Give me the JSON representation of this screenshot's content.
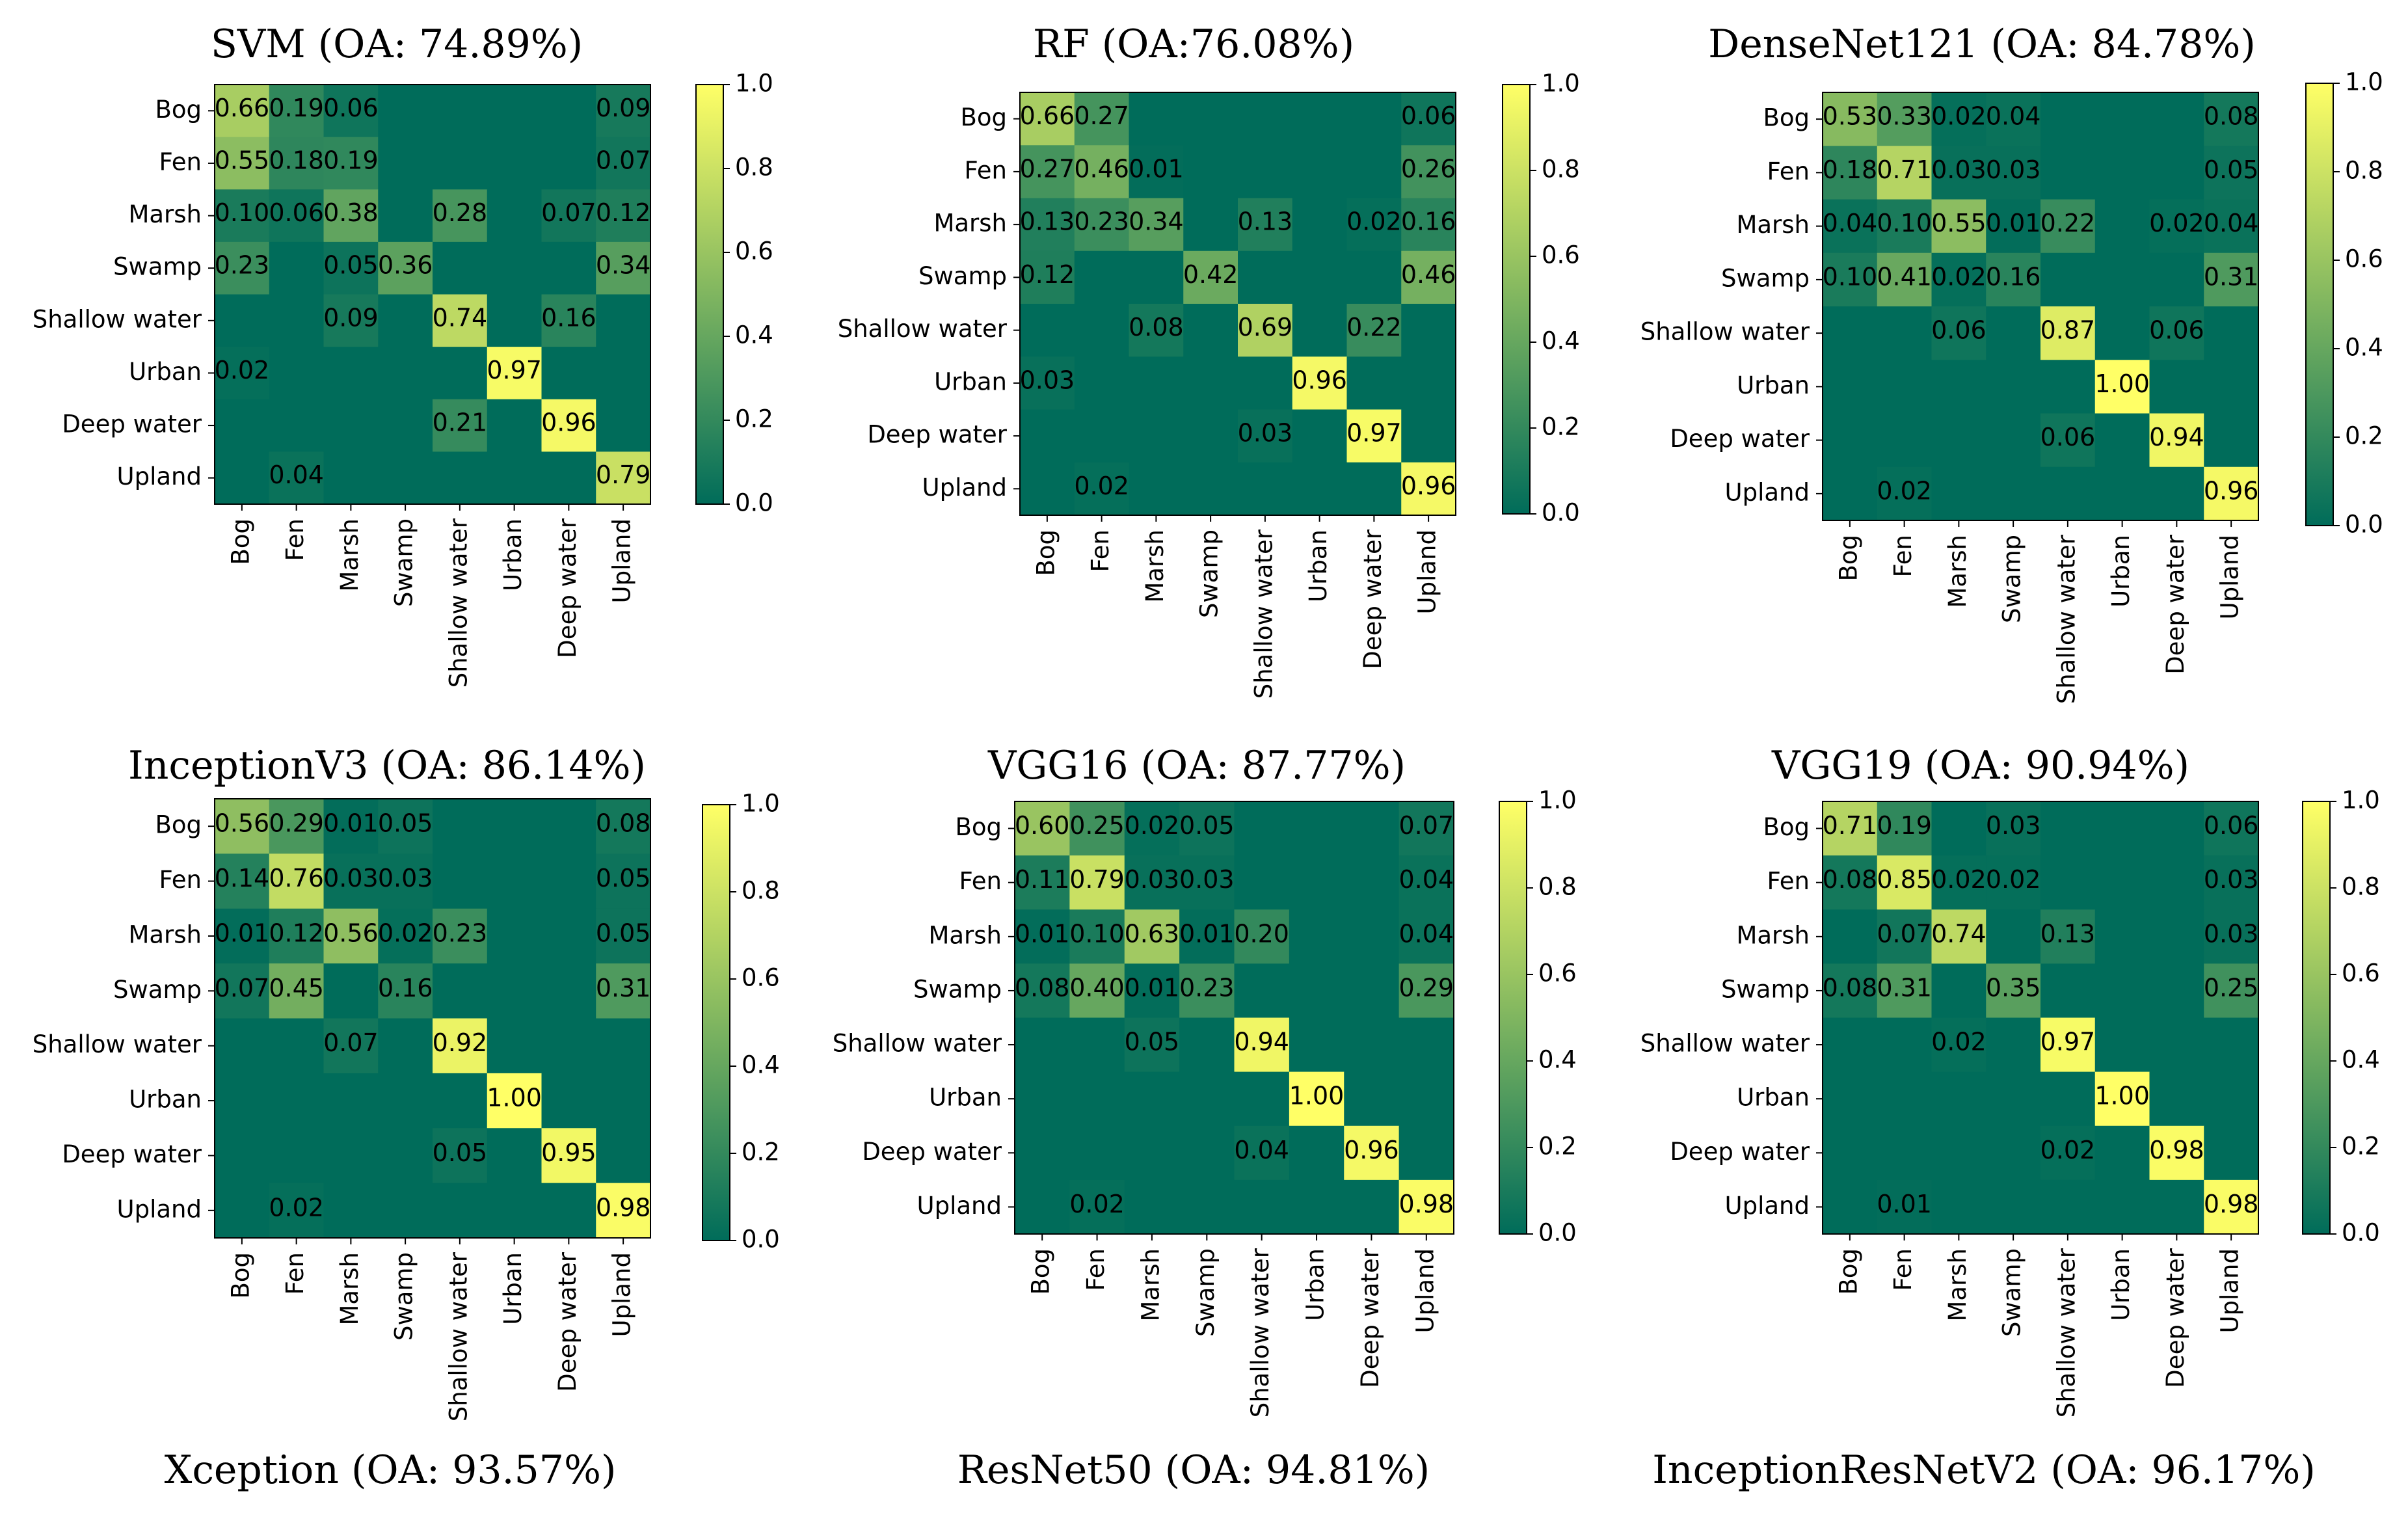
{
  "colors": {
    "low": "#006c5a",
    "high": "#ffff66",
    "text": "#000000"
  },
  "chart_data": [
    {
      "type": "heatmap",
      "title": "SVM (OA: 74.89%)",
      "labels": [
        "Bog",
        "Fen",
        "Marsh",
        "Swamp",
        "Shallow water",
        "Urban",
        "Deep water",
        "Upland"
      ],
      "values": [
        [
          0.66,
          0.19,
          0.06,
          null,
          null,
          null,
          null,
          0.09
        ],
        [
          0.55,
          0.18,
          0.19,
          null,
          null,
          null,
          null,
          0.07
        ],
        [
          0.1,
          0.06,
          0.38,
          null,
          0.28,
          null,
          0.07,
          0.12
        ],
        [
          0.23,
          null,
          0.05,
          0.36,
          null,
          null,
          null,
          0.34
        ],
        [
          null,
          null,
          0.09,
          null,
          0.74,
          null,
          0.16,
          null
        ],
        [
          0.02,
          null,
          null,
          null,
          null,
          0.97,
          null,
          null
        ],
        [
          null,
          null,
          null,
          null,
          0.21,
          null,
          0.96,
          null
        ],
        [
          null,
          0.04,
          null,
          null,
          null,
          null,
          null,
          0.79
        ]
      ],
      "colorbar_ticks": [
        "0.0",
        "0.2",
        "0.4",
        "0.6",
        "0.8",
        "1.0"
      ],
      "vmin": 0,
      "vmax": 1
    },
    {
      "type": "heatmap",
      "title": "RF (OA:76.08%)",
      "labels": [
        "Bog",
        "Fen",
        "Marsh",
        "Swamp",
        "Shallow water",
        "Urban",
        "Deep water",
        "Upland"
      ],
      "values": [
        [
          0.66,
          0.27,
          null,
          null,
          null,
          null,
          null,
          0.06
        ],
        [
          0.27,
          0.46,
          0.01,
          null,
          null,
          null,
          null,
          0.26
        ],
        [
          0.13,
          0.23,
          0.34,
          null,
          0.13,
          null,
          0.02,
          0.16
        ],
        [
          0.12,
          null,
          null,
          0.42,
          null,
          null,
          null,
          0.46
        ],
        [
          null,
          null,
          0.08,
          null,
          0.69,
          null,
          0.22,
          null
        ],
        [
          0.03,
          null,
          null,
          null,
          null,
          0.96,
          null,
          null
        ],
        [
          null,
          null,
          null,
          null,
          0.03,
          null,
          0.97,
          null
        ],
        [
          null,
          0.02,
          null,
          null,
          null,
          null,
          null,
          0.96
        ]
      ],
      "colorbar_ticks": [
        "0.0",
        "0.2",
        "0.4",
        "0.6",
        "0.8",
        "1.0"
      ],
      "vmin": 0,
      "vmax": 1
    },
    {
      "type": "heatmap",
      "title": "DenseNet121 (OA: 84.78%)",
      "labels": [
        "Bog",
        "Fen",
        "Marsh",
        "Swamp",
        "Shallow water",
        "Urban",
        "Deep water",
        "Upland"
      ],
      "values": [
        [
          0.53,
          0.33,
          0.02,
          0.04,
          null,
          null,
          null,
          0.08
        ],
        [
          0.18,
          0.71,
          0.03,
          0.03,
          null,
          null,
          null,
          0.05
        ],
        [
          0.04,
          0.1,
          0.55,
          0.01,
          0.22,
          null,
          0.02,
          0.04
        ],
        [
          0.1,
          0.41,
          0.02,
          0.16,
          null,
          null,
          null,
          0.31
        ],
        [
          null,
          null,
          0.06,
          null,
          0.87,
          null,
          0.06,
          null
        ],
        [
          null,
          null,
          null,
          null,
          null,
          1.0,
          null,
          null
        ],
        [
          null,
          null,
          null,
          null,
          0.06,
          null,
          0.94,
          null
        ],
        [
          null,
          0.02,
          null,
          null,
          null,
          null,
          null,
          0.96
        ]
      ],
      "colorbar_ticks": [
        "0.0",
        "0.2",
        "0.4",
        "0.6",
        "0.8",
        "1.0"
      ],
      "vmin": 0,
      "vmax": 1
    },
    {
      "type": "heatmap",
      "title": "InceptionV3 (OA: 86.14%)",
      "labels": [
        "Bog",
        "Fen",
        "Marsh",
        "Swamp",
        "Shallow water",
        "Urban",
        "Deep water",
        "Upland"
      ],
      "values": [
        [
          0.56,
          0.29,
          0.01,
          0.05,
          null,
          null,
          null,
          0.08
        ],
        [
          0.14,
          0.76,
          0.03,
          0.03,
          null,
          null,
          null,
          0.05
        ],
        [
          0.01,
          0.12,
          0.56,
          0.02,
          0.23,
          null,
          null,
          0.05
        ],
        [
          0.07,
          0.45,
          null,
          0.16,
          null,
          null,
          null,
          0.31
        ],
        [
          null,
          null,
          0.07,
          null,
          0.92,
          null,
          null,
          null
        ],
        [
          null,
          null,
          null,
          null,
          null,
          1.0,
          null,
          null
        ],
        [
          null,
          null,
          null,
          null,
          0.05,
          null,
          0.95,
          null
        ],
        [
          null,
          0.02,
          null,
          null,
          null,
          null,
          null,
          0.98
        ]
      ],
      "colorbar_ticks": [
        "0.0",
        "0.2",
        "0.4",
        "0.6",
        "0.8",
        "1.0"
      ],
      "vmin": 0,
      "vmax": 1
    },
    {
      "type": "heatmap",
      "title": "VGG16 (OA: 87.77%)",
      "labels": [
        "Bog",
        "Fen",
        "Marsh",
        "Swamp",
        "Shallow water",
        "Urban",
        "Deep water",
        "Upland"
      ],
      "values": [
        [
          0.6,
          0.25,
          0.02,
          0.05,
          null,
          null,
          null,
          0.07
        ],
        [
          0.11,
          0.79,
          0.03,
          0.03,
          null,
          null,
          null,
          0.04
        ],
        [
          0.01,
          0.1,
          0.63,
          0.01,
          0.2,
          null,
          null,
          0.04
        ],
        [
          0.08,
          0.4,
          0.01,
          0.23,
          null,
          null,
          null,
          0.29
        ],
        [
          null,
          null,
          0.05,
          null,
          0.94,
          null,
          null,
          null
        ],
        [
          null,
          null,
          null,
          null,
          null,
          1.0,
          null,
          null
        ],
        [
          null,
          null,
          null,
          null,
          0.04,
          null,
          0.96,
          null
        ],
        [
          null,
          0.02,
          null,
          null,
          null,
          null,
          null,
          0.98
        ]
      ],
      "colorbar_ticks": [
        "0.0",
        "0.2",
        "0.4",
        "0.6",
        "0.8",
        "1.0"
      ],
      "vmin": 0,
      "vmax": 1
    },
    {
      "type": "heatmap",
      "title": "VGG19 (OA: 90.94%)",
      "labels": [
        "Bog",
        "Fen",
        "Marsh",
        "Swamp",
        "Shallow water",
        "Urban",
        "Deep water",
        "Upland"
      ],
      "values": [
        [
          0.71,
          0.19,
          null,
          0.03,
          null,
          null,
          null,
          0.06
        ],
        [
          0.08,
          0.85,
          0.02,
          0.02,
          null,
          null,
          null,
          0.03
        ],
        [
          null,
          0.07,
          0.74,
          null,
          0.13,
          null,
          null,
          0.03
        ],
        [
          0.08,
          0.31,
          null,
          0.35,
          null,
          null,
          null,
          0.25
        ],
        [
          null,
          null,
          0.02,
          null,
          0.97,
          null,
          null,
          null
        ],
        [
          null,
          null,
          null,
          null,
          null,
          1.0,
          null,
          null
        ],
        [
          null,
          null,
          null,
          null,
          0.02,
          null,
          0.98,
          null
        ],
        [
          null,
          0.01,
          null,
          null,
          null,
          null,
          null,
          0.98
        ]
      ],
      "colorbar_ticks": [
        "0.0",
        "0.2",
        "0.4",
        "0.6",
        "0.8",
        "1.0"
      ],
      "vmin": 0,
      "vmax": 1
    }
  ],
  "captions": [
    "Xception (OA: 93.57%)",
    "ResNet50 (OA: 94.81%)",
    "InceptionResNetV2 (OA: 96.17%)"
  ]
}
